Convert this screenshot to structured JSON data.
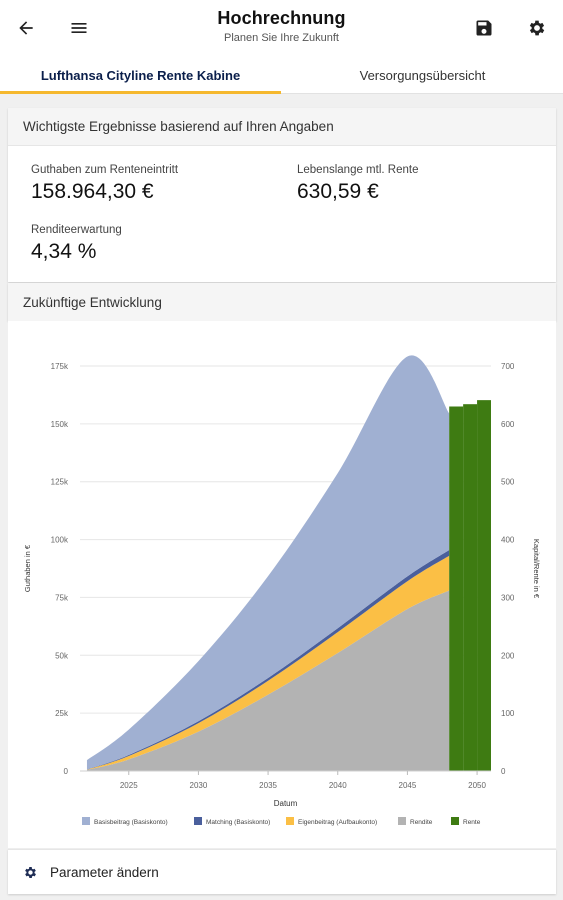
{
  "header": {
    "title": "Hochrechnung",
    "subtitle": "Planen Sie Ihre Zukunft",
    "icons": {
      "back": "arrow-left-icon",
      "menu": "hamburger-menu-icon",
      "save": "floppy-disk-icon",
      "settings": "gear-icon"
    }
  },
  "tabs": [
    {
      "label": "Lufthansa Cityline Rente Kabine",
      "active": true
    },
    {
      "label": "Versorgungsübersicht",
      "active": false
    }
  ],
  "results": {
    "header": "Wichtigste Ergebnisse basierend auf Ihren Angaben",
    "items": [
      {
        "label": "Guthaben zum Renteneintritt",
        "value": "158.964,30 €"
      },
      {
        "label": "Lebenslange mtl. Rente",
        "value": "630,59 €"
      },
      {
        "label": "Renditeerwartung",
        "value": "4,34 %"
      }
    ]
  },
  "development": {
    "header": "Zukünftige Entwicklung"
  },
  "chart_data": {
    "type": "area",
    "xlabel": "Datum",
    "ylabel": "Guthaben in €",
    "y2label": "Kapital/Rente in €",
    "x_ticks": [
      "2025",
      "2030",
      "2035",
      "2040",
      "2045",
      "2050"
    ],
    "y_ticks": [
      "0",
      "25k",
      "50k",
      "75k",
      "100k",
      "125k",
      "150k",
      "175k"
    ],
    "y2_ticks": [
      "0",
      "100",
      "200",
      "300",
      "400",
      "500",
      "600",
      "700"
    ],
    "ylim": [
      0,
      175000
    ],
    "y2lim": [
      0,
      700
    ],
    "xlim": [
      2021.5,
      2051
    ],
    "x": [
      2022,
      2025,
      2030,
      2035,
      2040,
      2045,
      2048
    ],
    "series": [
      {
        "name": "Rendite",
        "color": "#b3b3b3",
        "values": [
          500,
          5000,
          17000,
          33000,
          51000,
          70000,
          78000
        ]
      },
      {
        "name": "Eigenbeitrag (Aufbaukonto)",
        "color": "#fbbf45",
        "values": [
          100,
          1500,
          3700,
          6000,
          9000,
          12000,
          15000
        ]
      },
      {
        "name": "Matching (Basiskonto)",
        "color": "#4a5f9c",
        "values": [
          100,
          400,
          800,
          1200,
          1700,
          2100,
          2500
        ]
      },
      {
        "name": "Basisbeitrag (Basiskonto)",
        "color": "#a0b0d2",
        "values": [
          4000,
          11000,
          26000,
          44000,
          67000,
          95000,
          59000
        ]
      }
    ],
    "rente_series": {
      "name": "Rente",
      "color": "#3e7b12",
      "x": [
        2048,
        2049,
        2050
      ],
      "values": [
        630,
        634,
        641
      ]
    },
    "legend": [
      {
        "name": "Basisbeitrag (Basiskonto)",
        "color": "#a0b0d2"
      },
      {
        "name": "Matching (Basiskonto)",
        "color": "#4a5f9c"
      },
      {
        "name": "Eigenbeitrag (Aufbaukonto)",
        "color": "#fbbf45"
      },
      {
        "name": "Rendite",
        "color": "#b3b3b3"
      },
      {
        "name": "Rente",
        "color": "#3e7b12"
      }
    ],
    "legend_position": "bottom"
  },
  "footer": {
    "label": "Parameter ändern",
    "icon": "gear-icon"
  }
}
